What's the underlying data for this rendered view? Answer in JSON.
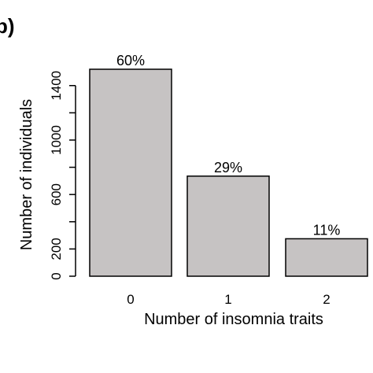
{
  "panel_label": "b)",
  "chart_data": {
    "type": "bar",
    "title": "",
    "xlabel": "Number of insomnia traits",
    "ylabel": "Number of individuals",
    "categories": [
      "0",
      "1",
      "2"
    ],
    "values": [
      1520,
      735,
      275
    ],
    "data_labels": [
      "60%",
      "29%",
      "11%"
    ],
    "y_ticks": [
      "0",
      "200",
      "600",
      "1000",
      "1400"
    ],
    "ylim": [
      0,
      1520
    ],
    "grid": false,
    "legend": "none",
    "colors": {
      "bar_fill": "#c6c3c3",
      "bar_stroke": "#000000",
      "axis": "#000000"
    }
  }
}
